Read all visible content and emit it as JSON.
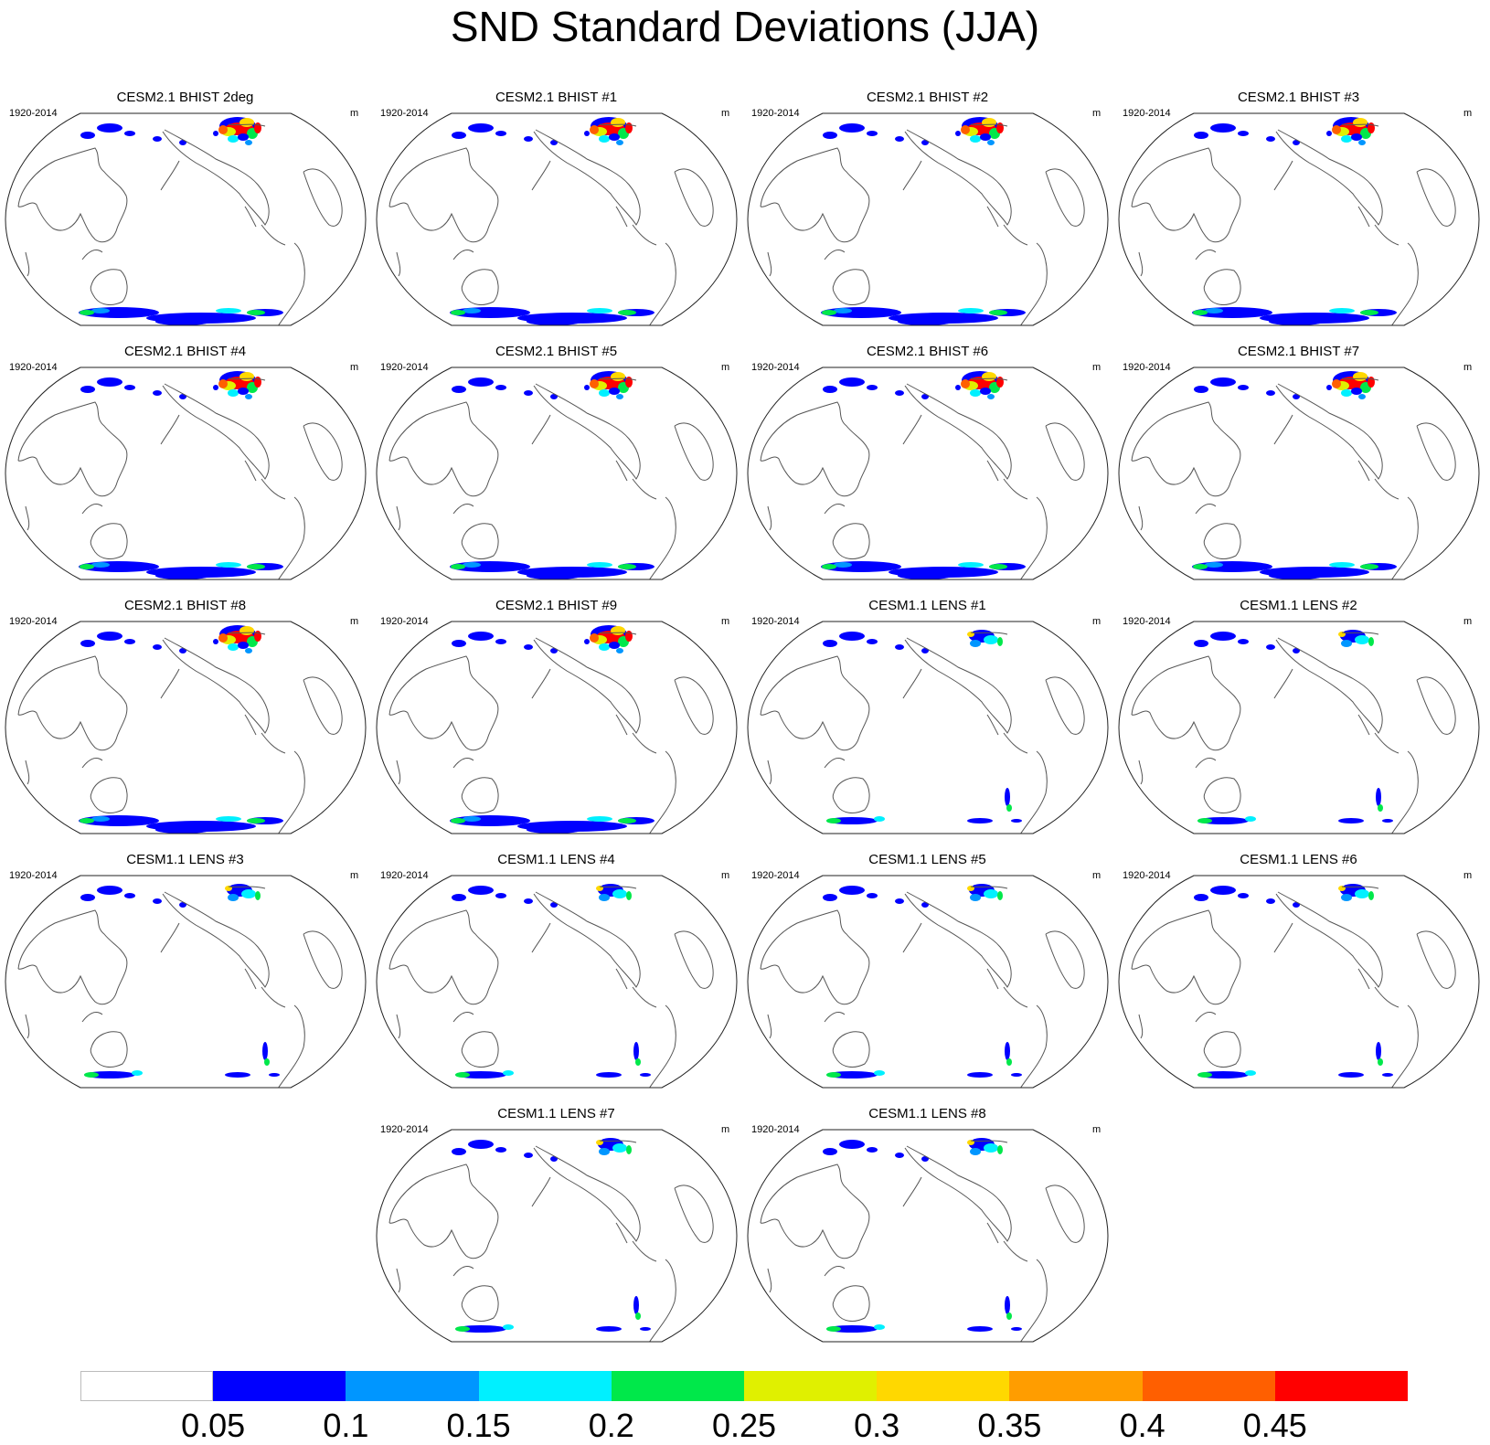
{
  "title": "SND Standard Deviations (JJA)",
  "period": "1920-2014",
  "units": "m",
  "panels": [
    {
      "title": "CESM2.1 BHIST 2deg",
      "kind": "bhist"
    },
    {
      "title": "CESM2.1 BHIST #1",
      "kind": "bhist"
    },
    {
      "title": "CESM2.1 BHIST #2",
      "kind": "bhist"
    },
    {
      "title": "CESM2.1 BHIST #3",
      "kind": "bhist"
    },
    {
      "title": "CESM2.1 BHIST #4",
      "kind": "bhist"
    },
    {
      "title": "CESM2.1 BHIST #5",
      "kind": "bhist"
    },
    {
      "title": "CESM2.1 BHIST #6",
      "kind": "bhist"
    },
    {
      "title": "CESM2.1 BHIST #7",
      "kind": "bhist"
    },
    {
      "title": "CESM2.1 BHIST #8",
      "kind": "bhist"
    },
    {
      "title": "CESM2.1 BHIST #9",
      "kind": "bhist"
    },
    {
      "title": "CESM1.1 LENS #1",
      "kind": "lens"
    },
    {
      "title": "CESM1.1 LENS #2",
      "kind": "lens"
    },
    {
      "title": "CESM1.1 LENS #3",
      "kind": "lens"
    },
    {
      "title": "CESM1.1 LENS #4",
      "kind": "lens"
    },
    {
      "title": "CESM1.1 LENS #5",
      "kind": "lens"
    },
    {
      "title": "CESM1.1 LENS #6",
      "kind": "lens"
    },
    {
      "title": "CESM1.1 LENS #7",
      "kind": "lens"
    },
    {
      "title": "CESM1.1 LENS #8",
      "kind": "lens"
    }
  ],
  "colorbar": {
    "colors": [
      "#ffffff",
      "#0000ff",
      "#0096ff",
      "#00f0ff",
      "#00e84a",
      "#e0f000",
      "#ffd800",
      "#ff9d00",
      "#ff5f00",
      "#ff0000"
    ],
    "labels": [
      "0.05",
      "0.1",
      "0.15",
      "0.2",
      "0.25",
      "0.3",
      "0.35",
      "0.4",
      "0.45"
    ]
  }
}
